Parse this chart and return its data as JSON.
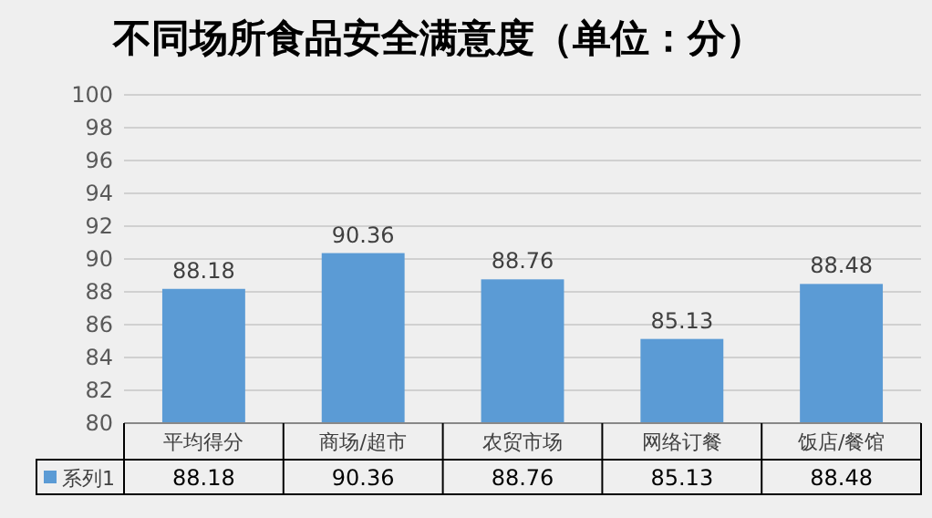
{
  "chart_data": {
    "type": "bar",
    "title": "不同场所食品安全满意度（单位：分）",
    "categories": [
      "平均得分",
      "商场/超市",
      "农贸市场",
      "网络订餐",
      "饭店/餐馆"
    ],
    "series": [
      {
        "name": "系列1",
        "color": "#5b9bd5",
        "values": [
          88.18,
          90.36,
          88.76,
          85.13,
          88.48
        ],
        "value_labels": [
          "88.18",
          "90.36",
          "88.76",
          "85.13",
          "88.48"
        ]
      }
    ],
    "ylim": [
      80,
      100
    ],
    "yticks": [
      80,
      82,
      84,
      86,
      88,
      90,
      92,
      94,
      96,
      98,
      100
    ],
    "grid": "y",
    "legend": "bottom left",
    "annotations": [
      "88.18",
      "90.36",
      "88.76",
      "85.13",
      "88.48"
    ]
  }
}
